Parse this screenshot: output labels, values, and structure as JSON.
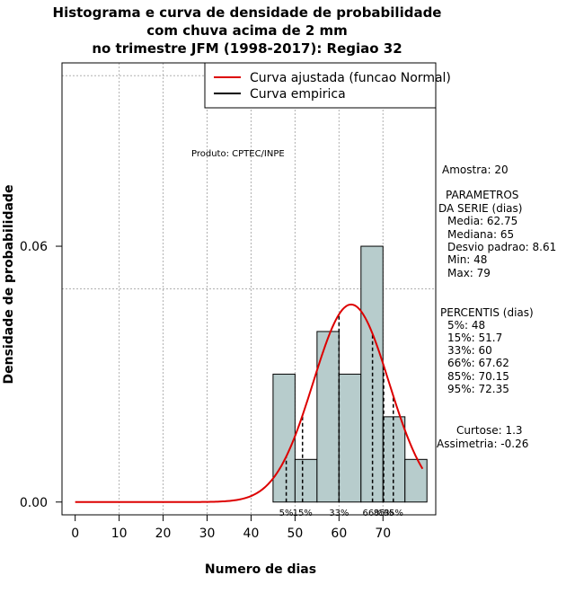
{
  "chart_data": {
    "type": "bar",
    "title": [
      "Histograma e curva de densidade de probabilidade",
      "com chuva acima de 2 mm",
      "no trimestre JFM (1998-2017): Regiao 32"
    ],
    "xlabel": "Numero de dias",
    "ylabel": "Densidade de probabilidade",
    "xlim": [
      -3,
      82
    ],
    "ylim": [
      -0.003,
      0.103
    ],
    "x_ticks": [
      0,
      10,
      20,
      30,
      40,
      50,
      60,
      70
    ],
    "y_ticks": [
      0.0,
      0.06
    ],
    "y_tick_labels": [
      "0.00",
      "0.06"
    ],
    "grid": true,
    "grid_y": [
      0.05,
      0.1
    ],
    "grid_x": [
      10,
      20,
      30,
      40,
      50,
      60,
      70
    ],
    "bins": [
      {
        "x0": 45,
        "x1": 50,
        "density": 0.03
      },
      {
        "x0": 50,
        "x1": 55,
        "density": 0.01
      },
      {
        "x0": 55,
        "x1": 60,
        "density": 0.04
      },
      {
        "x0": 60,
        "x1": 65,
        "density": 0.03
      },
      {
        "x0": 65,
        "x1": 70,
        "density": 0.06
      },
      {
        "x0": 70,
        "x1": 75,
        "density": 0.02
      },
      {
        "x0": 75,
        "x1": 80,
        "density": 0.01
      }
    ],
    "normal_fit": {
      "mean": 62.75,
      "sd": 8.61,
      "x_range": [
        0,
        79
      ],
      "color": "#dd0000"
    },
    "percentile_markers": [
      {
        "x": 48,
        "label": "5%"
      },
      {
        "x": 51.7,
        "label": "15%"
      },
      {
        "x": 60,
        "label": "33%"
      },
      {
        "x": 67.62,
        "label": "66%"
      },
      {
        "x": 70.15,
        "label": "85%"
      },
      {
        "x": 72.35,
        "label": "95%"
      }
    ],
    "legend": {
      "position": "top-right",
      "entries": [
        {
          "label": "Curva ajustada (funcao Normal)",
          "color": "#dd0000"
        },
        {
          "label": "Curva empirica",
          "color": "#000000"
        }
      ]
    },
    "annotation": "Produto: CPTEC/INPE",
    "bar_color": "#b7cccc"
  },
  "stats_panel": {
    "amostra": "Amostra: 20",
    "parametros_title_1": "PARAMETROS",
    "parametros_title_2": "DA SERIE (dias)",
    "media": "Media: 62.75",
    "mediana": "Mediana: 65",
    "desvio": "Desvio padrao: 8.61",
    "min": "Min: 48",
    "max": "Max: 79",
    "percentis_title": "PERCENTIS (dias)",
    "p5": "5%: 48",
    "p15": "15%: 51.7",
    "p33": "33%: 60",
    "p66": "66%: 67.62",
    "p85": "85%: 70.15",
    "p95": "95%: 72.35",
    "curtose": "Curtose: 1.3",
    "assimetria": "Assimetria: -0.26"
  }
}
